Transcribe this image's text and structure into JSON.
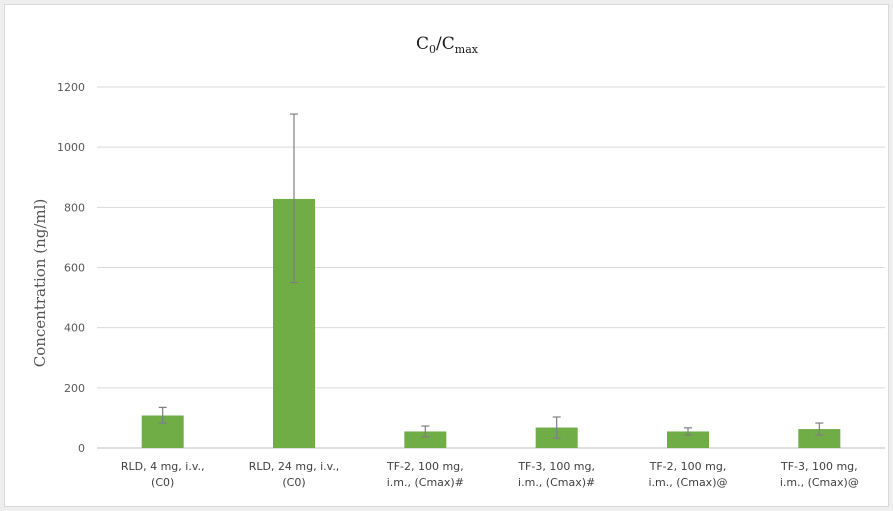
{
  "colors": {
    "bar": "#70ad47",
    "error_bar": "#7f7f7f",
    "gridline": "#d9d9d9"
  },
  "chart_data": {
    "type": "bar",
    "title": "C0/Cmax",
    "title_main": "C",
    "title_sub1": "0",
    "title_sep": "/C",
    "title_sub2": "max",
    "ylabel": "Concentration  (ng/ml)",
    "xlabel": "",
    "ylim": [
      0,
      1200
    ],
    "yticks": [
      0,
      200,
      400,
      600,
      800,
      1000,
      1200
    ],
    "grid": true,
    "legend": "none",
    "categories": [
      [
        "RLD, 4 mg, i.v.,",
        "(C0)"
      ],
      [
        "RLD, 24 mg, i.v.,",
        "(C0)"
      ],
      [
        "TF-2, 100 mg,",
        "i.m., (Cmax)#"
      ],
      [
        "TF-3, 100 mg,",
        "i.m., (Cmax)#"
      ],
      [
        "TF-2, 100 mg,",
        "i.m., (Cmax)@"
      ],
      [
        "TF-3, 100 mg,",
        "i.m., (Cmax)@"
      ]
    ],
    "values": [
      108,
      828,
      55,
      68,
      55,
      63
    ],
    "error_low": [
      83,
      550,
      37,
      33,
      43,
      43
    ],
    "error_high": [
      135,
      1110,
      73,
      103,
      67,
      83
    ]
  }
}
